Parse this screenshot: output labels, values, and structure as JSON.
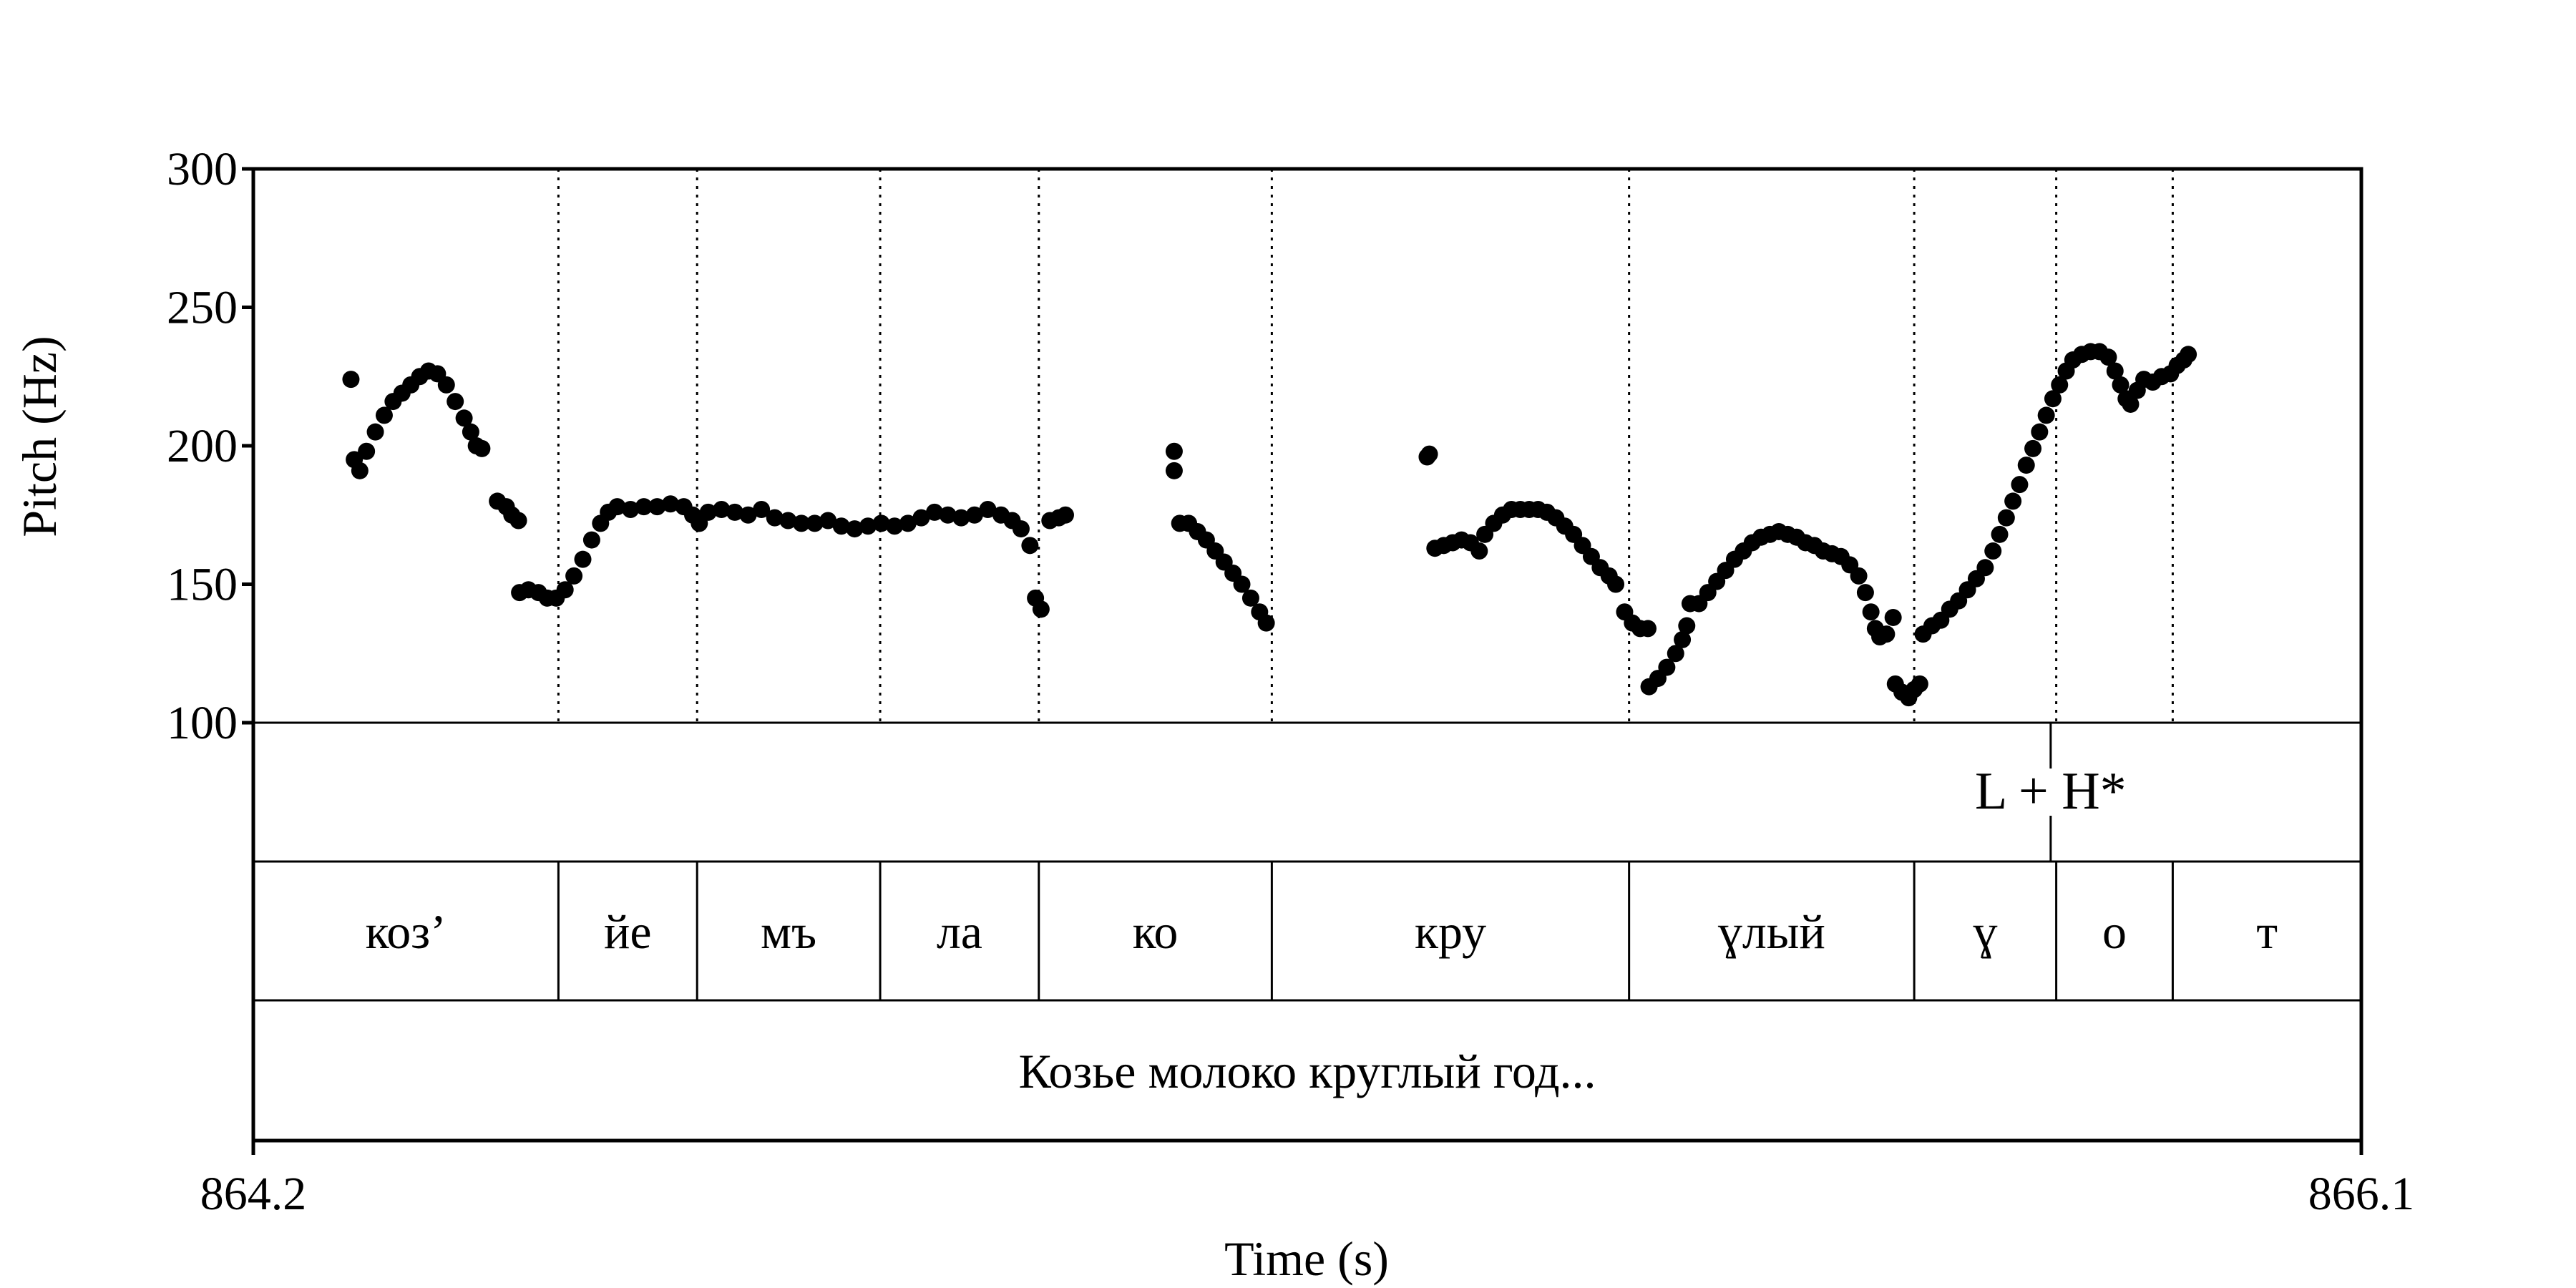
{
  "chart_data": {
    "type": "scatter",
    "title": "",
    "xlabel": "Time (s)",
    "ylabel": "Pitch (Hz)",
    "xlim": [
      864.2,
      866.1
    ],
    "ylim": [
      100,
      300
    ],
    "y_ticks": [
      "100",
      "150",
      "200",
      "250",
      "300"
    ],
    "x_ticks": [
      "864.2",
      "866.1"
    ],
    "marker_color": "#000000",
    "tones_tier": [
      {
        "time": 865.82,
        "label": "L + H*"
      }
    ],
    "syllable_tier": [
      {
        "start": 864.2,
        "end": 864.475,
        "label": "коз’"
      },
      {
        "start": 864.475,
        "end": 864.6,
        "label": "йе"
      },
      {
        "start": 864.6,
        "end": 864.765,
        "label": "мъ"
      },
      {
        "start": 864.765,
        "end": 864.908,
        "label": "ла"
      },
      {
        "start": 864.908,
        "end": 865.118,
        "label": "ко"
      },
      {
        "start": 865.118,
        "end": 865.44,
        "label": "кру"
      },
      {
        "start": 865.44,
        "end": 865.697,
        "label": "ɣлый"
      },
      {
        "start": 865.697,
        "end": 865.825,
        "label": "ɣ"
      },
      {
        "start": 865.825,
        "end": 865.93,
        "label": "о"
      },
      {
        "start": 865.93,
        "end": 866.1,
        "label": "т"
      }
    ],
    "phrase_tier": [
      {
        "start": 864.2,
        "end": 866.1,
        "label": "Козье молоко круглый год..."
      }
    ],
    "pitch_segments": [
      [
        [
          864.288,
          224
        ]
      ],
      [
        [
          864.291,
          195
        ],
        [
          864.296,
          191
        ],
        [
          864.302,
          198
        ],
        [
          864.31,
          205
        ],
        [
          864.318,
          211
        ],
        [
          864.326,
          216
        ],
        [
          864.334,
          219
        ],
        [
          864.342,
          222
        ],
        [
          864.35,
          225
        ],
        [
          864.358,
          227
        ],
        [
          864.366,
          226
        ],
        [
          864.374,
          222
        ],
        [
          864.382,
          216
        ],
        [
          864.39,
          210
        ],
        [
          864.396,
          205
        ],
        [
          864.401,
          200
        ],
        [
          864.406,
          199
        ]
      ],
      [
        [
          864.42,
          180
        ],
        [
          864.428,
          178
        ],
        [
          864.433,
          175
        ],
        [
          864.439,
          173
        ]
      ],
      [
        [
          864.44,
          147
        ],
        [
          864.448,
          148
        ],
        [
          864.457,
          147
        ],
        [
          864.465,
          145
        ],
        [
          864.473,
          145
        ],
        [
          864.481,
          148
        ],
        [
          864.489,
          153
        ],
        [
          864.497,
          159
        ],
        [
          864.505,
          166
        ],
        [
          864.513,
          172
        ],
        [
          864.52,
          176
        ],
        [
          864.528,
          178
        ],
        [
          864.54,
          177
        ],
        [
          864.552,
          178
        ],
        [
          864.564,
          178
        ],
        [
          864.576,
          179
        ],
        [
          864.588,
          178
        ],
        [
          864.596,
          175
        ],
        [
          864.602,
          172
        ],
        [
          864.61,
          176
        ],
        [
          864.622,
          177
        ],
        [
          864.634,
          176
        ],
        [
          864.646,
          175
        ],
        [
          864.658,
          177
        ],
        [
          864.67,
          174
        ],
        [
          864.682,
          173
        ],
        [
          864.694,
          172
        ],
        [
          864.706,
          172
        ],
        [
          864.718,
          173
        ],
        [
          864.73,
          171
        ],
        [
          864.742,
          170
        ],
        [
          864.754,
          171
        ],
        [
          864.766,
          172
        ],
        [
          864.778,
          171
        ],
        [
          864.79,
          172
        ],
        [
          864.802,
          174
        ],
        [
          864.814,
          176
        ],
        [
          864.826,
          175
        ],
        [
          864.838,
          174
        ],
        [
          864.85,
          175
        ],
        [
          864.862,
          177
        ],
        [
          864.874,
          175
        ],
        [
          864.884,
          173
        ],
        [
          864.892,
          170
        ]
      ],
      [
        [
          864.9,
          164
        ],
        [
          864.905,
          145
        ],
        [
          864.91,
          141
        ]
      ],
      [
        [
          864.918,
          173
        ],
        [
          864.926,
          174
        ],
        [
          864.932,
          175
        ]
      ],
      [
        [
          865.03,
          198
        ],
        [
          865.03,
          191
        ]
      ],
      [
        [
          865.035,
          172
        ],
        [
          865.043,
          172
        ],
        [
          865.051,
          169
        ],
        [
          865.059,
          166
        ],
        [
          865.067,
          162
        ],
        [
          865.075,
          158
        ],
        [
          865.083,
          154
        ],
        [
          865.091,
          150
        ],
        [
          865.099,
          145
        ],
        [
          865.107,
          140
        ],
        [
          865.113,
          136
        ]
      ],
      [
        [
          865.26,
          197
        ],
        [
          865.258,
          196
        ]
      ],
      [
        [
          865.265,
          163
        ],
        [
          865.273,
          164
        ],
        [
          865.281,
          165
        ],
        [
          865.289,
          166
        ],
        [
          865.297,
          165
        ],
        [
          865.305,
          162
        ],
        [
          865.31,
          168
        ],
        [
          865.318,
          172
        ],
        [
          865.326,
          175
        ],
        [
          865.334,
          177
        ],
        [
          865.342,
          177
        ],
        [
          865.35,
          177
        ],
        [
          865.358,
          177
        ],
        [
          865.366,
          176
        ],
        [
          865.374,
          174
        ],
        [
          865.382,
          171
        ],
        [
          865.39,
          168
        ],
        [
          865.398,
          164
        ],
        [
          865.406,
          160
        ],
        [
          865.414,
          156
        ],
        [
          865.422,
          153
        ],
        [
          865.428,
          150
        ]
      ],
      [
        [
          865.436,
          140
        ],
        [
          865.443,
          136
        ],
        [
          865.45,
          134
        ],
        [
          865.457,
          134
        ]
      ],
      [
        [
          865.458,
          113
        ],
        [
          865.466,
          116
        ],
        [
          865.474,
          120
        ],
        [
          865.482,
          125
        ],
        [
          865.488,
          130
        ],
        [
          865.492,
          135
        ]
      ],
      [
        [
          865.495,
          143
        ],
        [
          865.503,
          143
        ],
        [
          865.511,
          147
        ],
        [
          865.519,
          151
        ],
        [
          865.527,
          155
        ],
        [
          865.535,
          159
        ],
        [
          865.543,
          162
        ],
        [
          865.551,
          165
        ],
        [
          865.559,
          167
        ],
        [
          865.567,
          168
        ],
        [
          865.575,
          169
        ],
        [
          865.583,
          168
        ],
        [
          865.591,
          167
        ],
        [
          865.599,
          165
        ],
        [
          865.607,
          164
        ],
        [
          865.615,
          162
        ],
        [
          865.623,
          161
        ],
        [
          865.631,
          160
        ],
        [
          865.639,
          157
        ],
        [
          865.647,
          153
        ],
        [
          865.653,
          147
        ],
        [
          865.658,
          140
        ],
        [
          865.662,
          134
        ],
        [
          865.666,
          131
        ],
        [
          865.672,
          132
        ],
        [
          865.678,
          138
        ]
      ],
      [
        [
          865.68,
          114
        ],
        [
          865.686,
          111
        ],
        [
          865.692,
          109
        ],
        [
          865.697,
          112
        ],
        [
          865.702,
          114
        ]
      ],
      [
        [
          865.705,
          132
        ],
        [
          865.713,
          135
        ],
        [
          865.721,
          137
        ],
        [
          865.729,
          141
        ],
        [
          865.737,
          144
        ],
        [
          865.745,
          148
        ],
        [
          865.753,
          152
        ],
        [
          865.761,
          156
        ],
        [
          865.768,
          162
        ],
        [
          865.774,
          168
        ],
        [
          865.78,
          174
        ],
        [
          865.786,
          180
        ],
        [
          865.792,
          186
        ],
        [
          865.798,
          193
        ],
        [
          865.804,
          199
        ],
        [
          865.81,
          205
        ],
        [
          865.816,
          211
        ],
        [
          865.822,
          217
        ],
        [
          865.828,
          222
        ],
        [
          865.834,
          227
        ],
        [
          865.84,
          231
        ],
        [
          865.848,
          233
        ],
        [
          865.856,
          234
        ],
        [
          865.864,
          234
        ],
        [
          865.872,
          232
        ],
        [
          865.878,
          227
        ],
        [
          865.883,
          222
        ],
        [
          865.888,
          217
        ],
        [
          865.892,
          215
        ],
        [
          865.898,
          220
        ],
        [
          865.904,
          224
        ],
        [
          865.912,
          223
        ],
        [
          865.92,
          225
        ],
        [
          865.928,
          226
        ],
        [
          865.934,
          229
        ],
        [
          865.94,
          231
        ],
        [
          865.944,
          233
        ]
      ]
    ]
  }
}
